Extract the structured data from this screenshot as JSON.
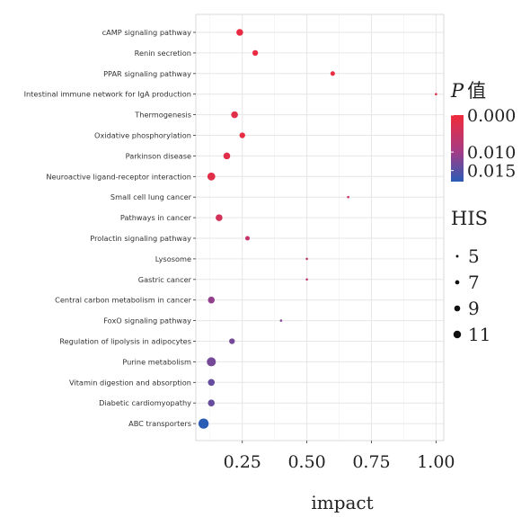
{
  "chart_data": {
    "type": "scatter",
    "xlabel": "impact",
    "xlim": [
      0.07,
      1.03
    ],
    "xticks": [
      0.25,
      0.5,
      0.75,
      1.0
    ],
    "xtick_labels": [
      "0.25",
      "0.50",
      "0.75",
      "1.00"
    ],
    "categories": [
      "cAMP signaling pathway",
      "Renin secretion",
      "PPAR signaling pathway",
      "Intestinal immune network for IgA production",
      "Thermogenesis",
      "Oxidative phosphorylation",
      "Parkinson disease",
      "Neuroactive ligand-receptor interaction",
      "Small cell lung cancer",
      "Pathways in cancer",
      "Prolactin signaling pathway",
      "Lysosome",
      "Gastric cancer",
      "Central carbon metabolism in cancer",
      "FoxO signaling pathway",
      "Regulation of lipolysis in adipocytes",
      "Purine metabolism",
      "Vitamin digestion and absorption",
      "Diabetic cardiomyopathy",
      "ABC transporters"
    ],
    "points": [
      {
        "category": "cAMP signaling pathway",
        "impact": 0.24,
        "p": 0.001,
        "his": 8
      },
      {
        "category": "Renin secretion",
        "impact": 0.3,
        "p": 0.001,
        "his": 7
      },
      {
        "category": "PPAR signaling pathway",
        "impact": 0.6,
        "p": 0.001,
        "his": 6
      },
      {
        "category": "Intestinal immune network for IgA production",
        "impact": 1.0,
        "p": 0.002,
        "his": 4
      },
      {
        "category": "Thermogenesis",
        "impact": 0.22,
        "p": 0.002,
        "his": 8
      },
      {
        "category": "Oxidative phosphorylation",
        "impact": 0.25,
        "p": 0.001,
        "his": 7
      },
      {
        "category": "Parkinson disease",
        "impact": 0.19,
        "p": 0.002,
        "his": 8
      },
      {
        "category": "Neuroactive ligand-receptor interaction",
        "impact": 0.13,
        "p": 0.002,
        "his": 9
      },
      {
        "category": "Small cell lung cancer",
        "impact": 0.66,
        "p": 0.005,
        "his": 4
      },
      {
        "category": "Pathways in cancer",
        "impact": 0.16,
        "p": 0.004,
        "his": 8
      },
      {
        "category": "Prolactin signaling pathway",
        "impact": 0.27,
        "p": 0.006,
        "his": 6
      },
      {
        "category": "Lysosome",
        "impact": 0.5,
        "p": 0.007,
        "his": 4
      },
      {
        "category": "Gastric cancer",
        "impact": 0.5,
        "p": 0.007,
        "his": 4
      },
      {
        "category": "Central carbon metabolism in cancer",
        "impact": 0.13,
        "p": 0.011,
        "his": 8
      },
      {
        "category": "FoxO signaling pathway",
        "impact": 0.4,
        "p": 0.012,
        "his": 4
      },
      {
        "category": "Regulation of lipolysis in adipocytes",
        "impact": 0.21,
        "p": 0.013,
        "his": 7
      },
      {
        "category": "Purine metabolism",
        "impact": 0.13,
        "p": 0.013,
        "his": 10
      },
      {
        "category": "Vitamin digestion and absorption",
        "impact": 0.13,
        "p": 0.014,
        "his": 8
      },
      {
        "category": "Diabetic cardiomyopathy",
        "impact": 0.13,
        "p": 0.014,
        "his": 8
      },
      {
        "category": "ABC transporters",
        "impact": 0.1,
        "p": 0.018,
        "his": 11
      }
    ],
    "color_legend": {
      "title_prefix": "P",
      "title_suffix": "值",
      "labels": [
        "0.000",
        "0.010",
        "0.015"
      ],
      "values": [
        0.0,
        0.01,
        0.015
      ],
      "color_low_p": "#f12a3a",
      "color_mid_p": "#a43c86",
      "color_high_p": "#2a5bb5",
      "range": [
        0.0,
        0.018
      ]
    },
    "size_legend": {
      "title": "HIS",
      "values": [
        5,
        7,
        9,
        11
      ],
      "labels": [
        "5",
        "7",
        "9",
        "11"
      ]
    },
    "grid": true,
    "panel_background": "#ffffff",
    "grid_color": "#e6e6e6",
    "legend_position": "right"
  }
}
